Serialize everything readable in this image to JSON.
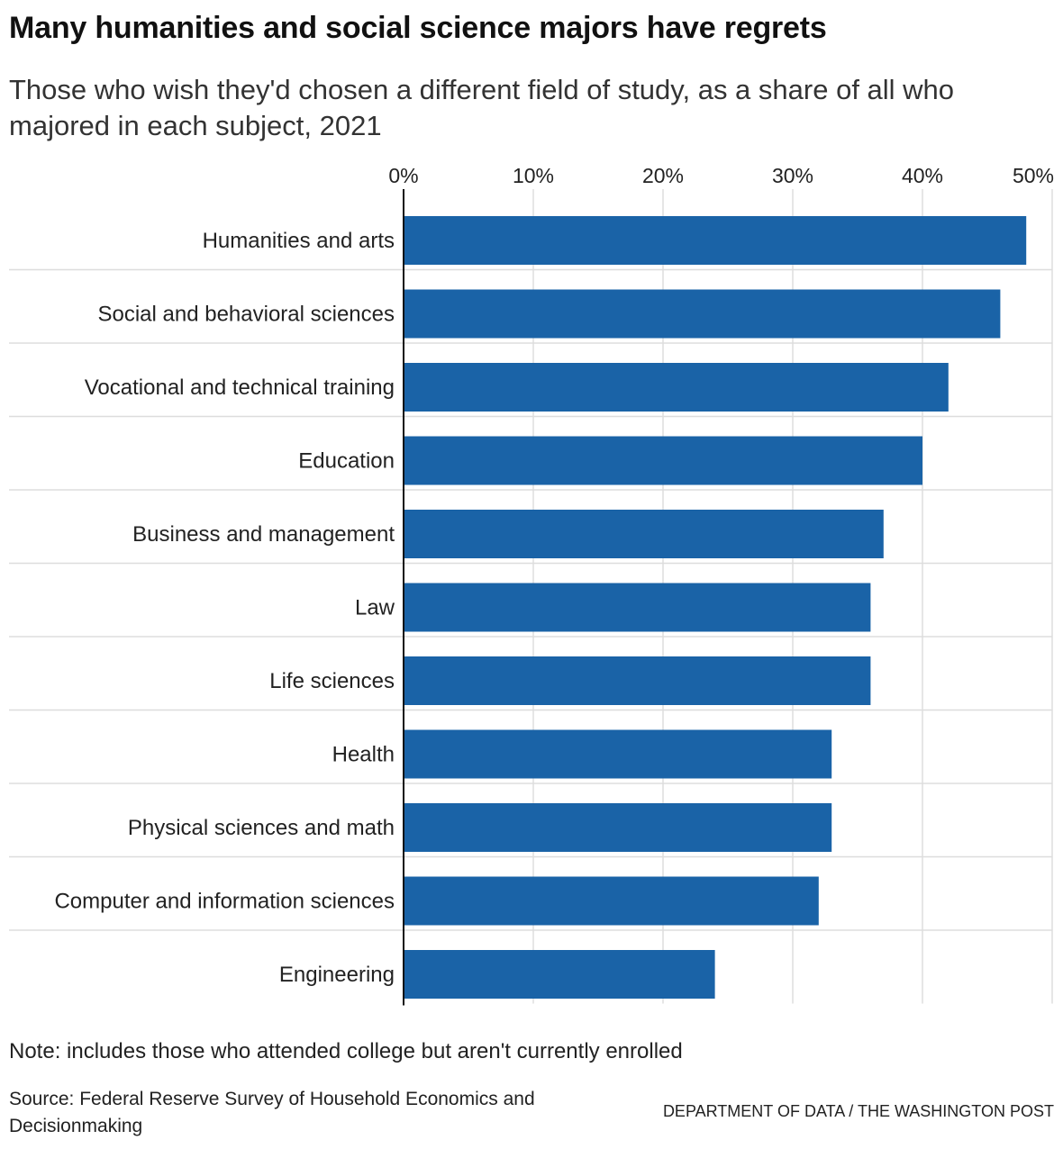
{
  "title": "Many humanities and social science majors have regrets",
  "subtitle": "Those who wish they'd chosen a different field of study, as a share of all who majored in each subject, 2021",
  "note": "Note: includes those who attended college but aren't currently enrolled",
  "source": "Source: Federal Reserve Survey of Household Economics and Decisionmaking",
  "credit": "DEPARTMENT OF DATA / THE WASHINGTON POST",
  "chart_data": {
    "type": "bar",
    "orientation": "horizontal",
    "categories": [
      "Humanities and arts",
      "Social and behavioral sciences",
      "Vocational and technical training",
      "Education",
      "Business and management",
      "Law",
      "Life sciences",
      "Health",
      "Physical sciences and math",
      "Computer and information sciences",
      "Engineering"
    ],
    "values": [
      48,
      46,
      42,
      40,
      37,
      36,
      36,
      33,
      33,
      32,
      24
    ],
    "unit": "%",
    "xlim": [
      0,
      50
    ],
    "xticks": [
      0,
      10,
      20,
      30,
      40,
      50
    ],
    "xtick_labels": [
      "0%",
      "10%",
      "20%",
      "30%",
      "40%",
      "50%"
    ],
    "axis_position": "top",
    "grid": true,
    "bar_color": "#1a63a7",
    "grid_color": "#dddddd"
  }
}
